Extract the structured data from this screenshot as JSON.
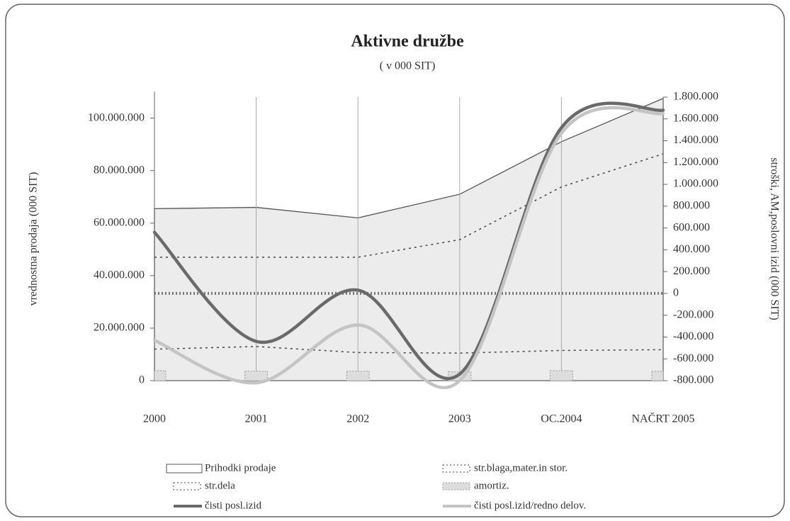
{
  "chart_data": {
    "type": "line",
    "title": "Aktivne družbe",
    "subtitle": "( v 000 SIT)",
    "y_label": "vrednostna prodaja (000 SIT)",
    "y2_label": "stroški, AM,poslovni izid (000 SIT)",
    "categories": [
      "2000",
      "2001",
      "2002",
      "2003",
      "OC.2004",
      "NAČRT 2005"
    ],
    "ylim": [
      0,
      108000000
    ],
    "yticks": [
      0,
      {
        "value": 20000000,
        "label": "20.000.000"
      },
      {
        "value": 40000000,
        "label": "40.000.000"
      },
      {
        "value": 60000000,
        "label": "60.000.000"
      },
      {
        "value": 80000000,
        "label": "80.000.000"
      },
      {
        "value": 100000000,
        "label": "100.000.000"
      }
    ],
    "y2lim": [
      -800000,
      1800000
    ],
    "y2ticks": [
      {
        "value": -800000,
        "label": "-800.000"
      },
      {
        "value": -600000,
        "label": "-600.000"
      },
      {
        "value": -400000,
        "label": "-400.000"
      },
      {
        "value": -200000,
        "label": "-200.000"
      },
      0,
      {
        "value": 200000,
        "label": "200.000"
      },
      {
        "value": 400000,
        "label": "400.000"
      },
      {
        "value": 600000,
        "label": "600.000"
      },
      {
        "value": 800000,
        "label": "800.000"
      },
      {
        "value": 1000000,
        "label": "1.000.000"
      },
      {
        "value": 1200000,
        "label": "1.200.000"
      },
      {
        "value": 1400000,
        "label": "1.400.000"
      },
      {
        "value": 1600000,
        "label": "1.600.000"
      },
      {
        "value": 1800000,
        "label": "1.800.000"
      }
    ],
    "xgrid": true,
    "series": [
      {
        "name": "Prihodki prodaje",
        "kind": "area",
        "color": "#555555",
        "values": [
          65500000,
          66000000,
          62000000,
          71000000,
          91000000,
          107500000
        ]
      },
      {
        "name": "str.blaga,mater.in stor.",
        "kind": "dotted",
        "color": "#444444",
        "values": [
          47000000,
          47000000,
          47000000,
          53700000,
          73800000,
          86400000
        ]
      },
      {
        "name": "str.dela",
        "kind": "dotted",
        "color": "#444444",
        "values": [
          12000000,
          13000000,
          10700000,
          10500000,
          11500000,
          11800000
        ]
      },
      {
        "name": "amortiz.",
        "kind": "bar",
        "color": "#999999",
        "values": [
          3800000,
          3600000,
          3600000,
          3400000,
          3800000,
          3600000
        ]
      },
      {
        "name": "čisti posl.izid",
        "kind": "smooth",
        "axis": "y2",
        "color": "#6a6a6a",
        "values": [
          560000,
          -440000,
          30000,
          -740000,
          1520000,
          1680000
        ]
      },
      {
        "name": "čisti posl.izid/redno delov.",
        "kind": "smooth",
        "axis": "y2",
        "color": "#c4c4c4",
        "values": [
          -430000,
          -820000,
          -290000,
          -800000,
          1470000,
          1650000
        ]
      }
    ]
  }
}
